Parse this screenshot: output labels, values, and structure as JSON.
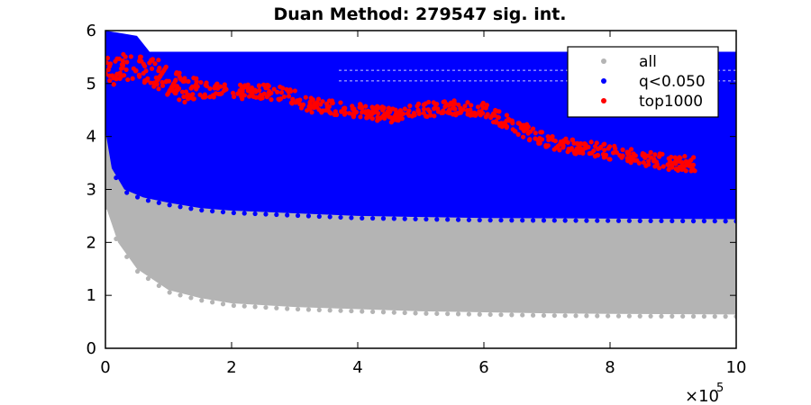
{
  "chart_data": {
    "type": "scatter",
    "title": "Duan Method: 279547 sig. int.",
    "xlabel": "",
    "ylabel": "",
    "xlim": [
      0,
      1000000
    ],
    "ylim": [
      0,
      6
    ],
    "x_ticks": [
      0,
      200000,
      400000,
      600000,
      800000,
      1000000
    ],
    "x_tick_labels": [
      "0",
      "2",
      "4",
      "6",
      "8",
      "10"
    ],
    "x_exponent_label": "×10",
    "x_exponent_power": "5",
    "y_ticks": [
      0,
      1,
      2,
      3,
      4,
      5,
      6
    ],
    "y_tick_labels": [
      "0",
      "1",
      "2",
      "3",
      "4",
      "5",
      "6"
    ],
    "grid": false,
    "legend_position": "top-right",
    "series": [
      {
        "name": "all",
        "color": "#b4b4b4",
        "lower_envelope": [
          [
            0,
            2.7
          ],
          [
            20000,
            2.0
          ],
          [
            50000,
            1.5
          ],
          [
            100000,
            1.1
          ],
          [
            150000,
            0.95
          ],
          [
            200000,
            0.85
          ],
          [
            300000,
            0.78
          ],
          [
            400000,
            0.74
          ],
          [
            500000,
            0.7
          ],
          [
            600000,
            0.68
          ],
          [
            700000,
            0.66
          ],
          [
            800000,
            0.65
          ],
          [
            1000000,
            0.64
          ]
        ],
        "upper_envelope": [
          [
            0,
            4.0
          ],
          [
            1000000,
            4.0
          ]
        ]
      },
      {
        "name": "q<0.050",
        "color": "#0000ff",
        "lower_envelope": [
          [
            0,
            4.1
          ],
          [
            10000,
            3.4
          ],
          [
            30000,
            3.0
          ],
          [
            60000,
            2.85
          ],
          [
            100000,
            2.75
          ],
          [
            150000,
            2.65
          ],
          [
            200000,
            2.6
          ],
          [
            300000,
            2.55
          ],
          [
            400000,
            2.5
          ],
          [
            500000,
            2.48
          ],
          [
            600000,
            2.46
          ],
          [
            800000,
            2.45
          ],
          [
            1000000,
            2.44
          ]
        ],
        "upper_envelope": [
          [
            0,
            6.0
          ],
          [
            50000,
            5.9
          ],
          [
            70000,
            5.6
          ],
          [
            1000000,
            5.6
          ]
        ]
      },
      {
        "name": "top1000",
        "color": "#ff0000",
        "center_line": [
          [
            0,
            5.2
          ],
          [
            40000,
            5.35
          ],
          [
            80000,
            5.2
          ],
          [
            100000,
            5.05
          ],
          [
            130000,
            4.9
          ],
          [
            200000,
            4.85
          ],
          [
            250000,
            4.85
          ],
          [
            300000,
            4.75
          ],
          [
            320000,
            4.6
          ],
          [
            400000,
            4.5
          ],
          [
            450000,
            4.4
          ],
          [
            500000,
            4.5
          ],
          [
            550000,
            4.55
          ],
          [
            600000,
            4.5
          ],
          [
            650000,
            4.2
          ],
          [
            700000,
            3.9
          ],
          [
            750000,
            3.8
          ],
          [
            800000,
            3.7
          ],
          [
            850000,
            3.6
          ],
          [
            900000,
            3.5
          ],
          [
            940000,
            3.48
          ]
        ]
      }
    ]
  }
}
